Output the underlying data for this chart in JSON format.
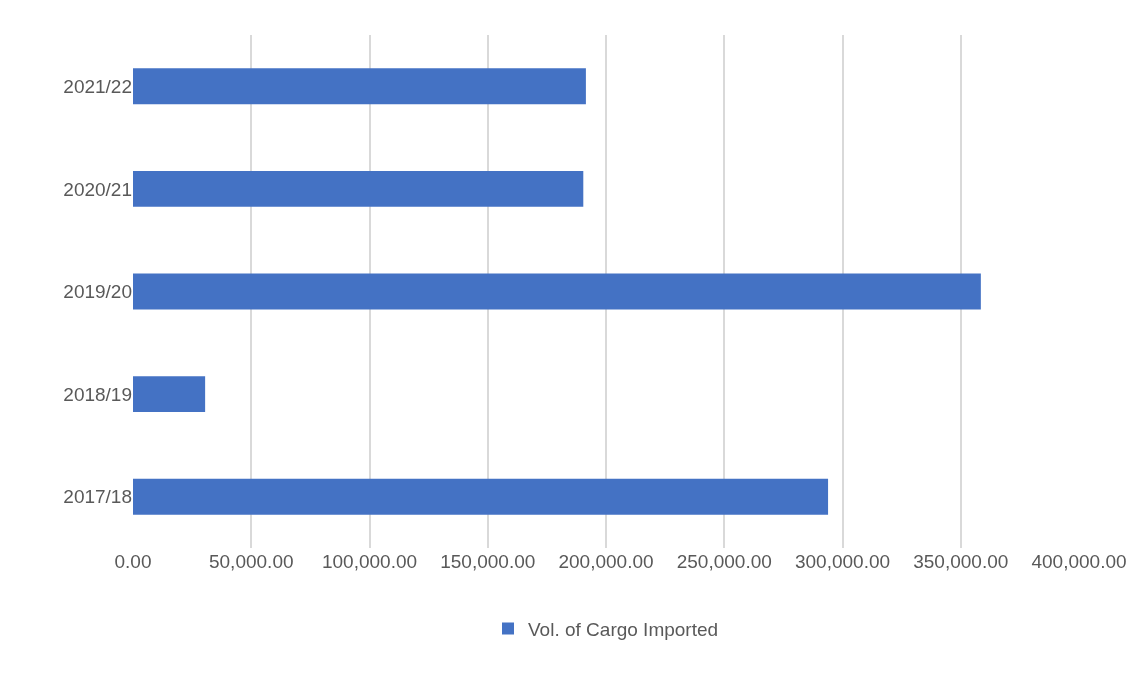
{
  "chart_data": {
    "type": "bar",
    "orientation": "horizontal",
    "categories": [
      "2021/22",
      "2020/21",
      "2019/20",
      "2018/19",
      "2017/18"
    ],
    "series": [
      {
        "name": "Vol. of Cargo Imported",
        "color": "#4472c4",
        "values": [
          191500,
          190400,
          358500,
          30500,
          293900
        ]
      }
    ],
    "xlim": [
      0,
      400000
    ],
    "xticks": [
      {
        "value": 0,
        "label": "0.00"
      },
      {
        "value": 50000,
        "label": "50,000.00"
      },
      {
        "value": 100000,
        "label": "100,000.00"
      },
      {
        "value": 150000,
        "label": "150,000.00"
      },
      {
        "value": 200000,
        "label": "200,000.00"
      },
      {
        "value": 250000,
        "label": "250,000.00"
      },
      {
        "value": 300000,
        "label": "300,000.00"
      },
      {
        "value": 350000,
        "label": "350,000.00"
      },
      {
        "value": 400000,
        "label": "400,000.00"
      }
    ],
    "grid": "x",
    "legend": "bottom"
  }
}
